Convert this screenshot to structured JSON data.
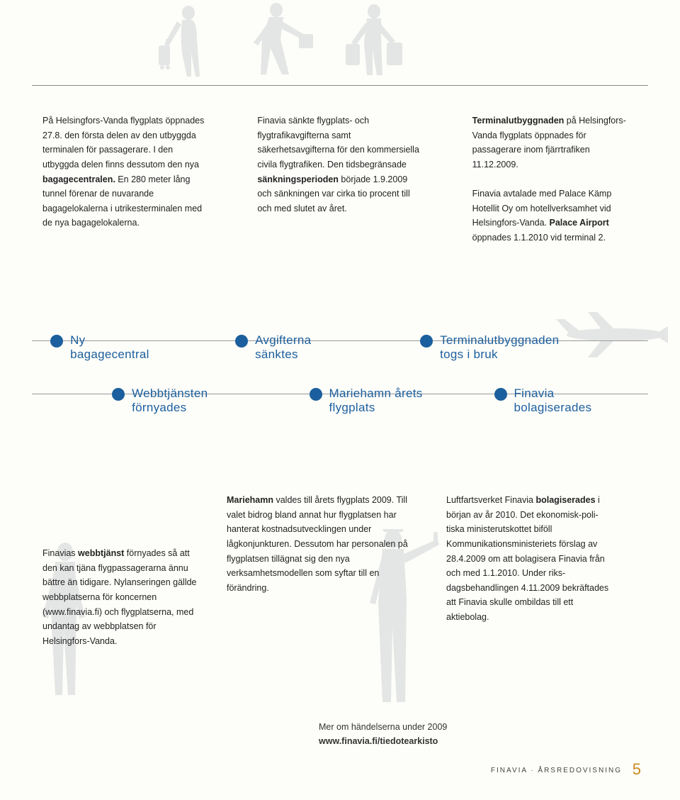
{
  "colors": {
    "background": "#fdfdf9",
    "silhouette": "#e4e6e5",
    "textBody": "#222222",
    "timelineBlue": "#1c5f9e",
    "ruleGray": "#888888",
    "pageNumber": "#c98b1f",
    "footerText": "#444444"
  },
  "typography": {
    "bodyFont": "Arial, Helvetica, sans-serif",
    "bodyFontSize": 12.5,
    "bodyLineHeight": 1.65,
    "timelineFont": "Trebuchet MS, Arial, sans-serif",
    "timelineFontSize": 17
  },
  "topColumns": [
    {
      "segments": [
        {
          "t": "På Helsingfors-Vanda flygplats öppnades 27.8. den första delen av den utbyggda terminalen för passagerare. I den utbyggda delen finns dessutom den nya ",
          "b": false
        },
        {
          "t": "bagage­centralen.",
          "b": true
        },
        {
          "t": " En 280 meter lång tunnel förenar de nuvarande bagagelokalerna i utrikes­terminalen med de nya bagage­lokalerna.",
          "b": false
        }
      ]
    },
    {
      "segments": [
        {
          "t": "Finavia sänkte flygplats- och flygtrafikavgifterna samt säkerhetsavgifterna för den kommersiella civila flygtrafiken. Den tidsbegränsade ",
          "b": false
        },
        {
          "t": "sänknings­perioden",
          "b": true
        },
        {
          "t": " började 1.9.2009 och sänkningen var cirka tio procent till och med slutet av året.",
          "b": false
        }
      ]
    },
    {
      "segments": [
        {
          "t": "Terminalutbyggnaden",
          "b": true
        },
        {
          "t": " på Hel­singfors-Vanda flygplats öpp­nades för passagerare inom fjärrtrafiken 11.12.2009.\n\nFinavia avtalade med Palace Kämp Hotellit Oy om hotell­verksamhet vid Helsingfors-Vanda. ",
          "b": false
        },
        {
          "t": "Palace Airport",
          "b": true
        },
        {
          "t": " öppna­des 1.1.2010 vid terminal 2.",
          "b": false
        }
      ]
    }
  ],
  "timeline": {
    "primary": [
      {
        "label": "Ny\nbagagecentral",
        "leftPct": 3
      },
      {
        "label": "Avgifterna\nsänktes",
        "leftPct": 33
      },
      {
        "label": "Terminalutbyggnaden\ntogs i bruk",
        "leftPct": 63
      }
    ],
    "secondary": [
      {
        "label": "Webbtjänsten\nförnyades",
        "leftPct": 13
      },
      {
        "label": "Mariehamn årets\nflygplats",
        "leftPct": 45
      },
      {
        "label": "Finavia\nbolagiserades",
        "leftPct": 75
      }
    ]
  },
  "bottomColumns": {
    "col1": {
      "segments": [
        {
          "t": "Finavias ",
          "b": false
        },
        {
          "t": "webbtjänst",
          "b": true
        },
        {
          "t": " för­nyades så att den kan tjäna flygpassagerarna ännu bättre än tidigare. Nylanseringen gällde webbplatserna för koncernen (www.finavia.fi) och flygplatserna, med undantag av webbplatsen för Helsingfors-Vanda.",
          "b": false
        }
      ]
    },
    "col2": {
      "segments": [
        {
          "t": "Mariehamn",
          "b": true
        },
        {
          "t": " valdes till årets flygplats 2009. Till valet bidrog bland annat hur flygplatsen har hanterat kost­nadsutvecklingen under lågkonjunk­turen. Dessutom har personalen på flygplatsen tillägnat sig den nya verksamhetsmodellen som syftar till en förändring.",
          "b": false
        }
      ]
    },
    "col3": {
      "segments": [
        {
          "t": "Luftfartsverket Finavia ",
          "b": false
        },
        {
          "t": "bolagiserades",
          "b": true
        },
        {
          "t": " i början av år 2010. Det ekonomisk-poli­tiska ministerutskottet biföll Kommunikationsministeriets förslag av 28.4.2009 om att bolagisera Finavia från och med 1.1.2010. Under riks­dagsbehandlingen 4.11.2009 bekräftades att Finavia skulle ombildas till ett aktiebolag.",
          "b": false
        }
      ]
    }
  },
  "moreLink": {
    "line1": "Mer om händelserna under 2009",
    "line2": "www.finavia.fi/tiedotearkisto"
  },
  "footer": {
    "text": "FINAVIA · ÅRSREDOVISNING",
    "page": "5"
  }
}
